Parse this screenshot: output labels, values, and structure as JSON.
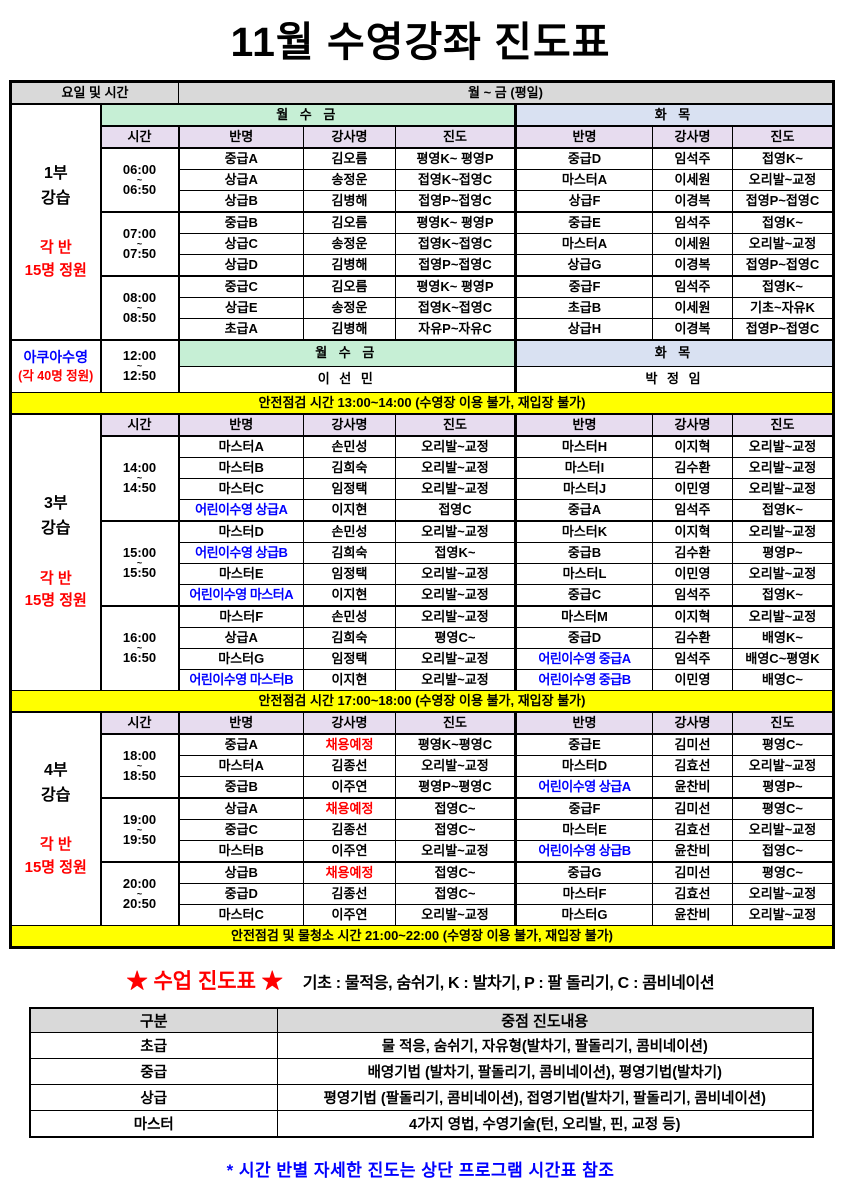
{
  "title": "11월 수영강좌 진도표",
  "colors": {
    "mwf_green": "#c6efd5",
    "tuethu_lavender": "#d9e1f2",
    "column_header_pink": "#e7dcef",
    "gray_header": "#d9d9d9",
    "banner_yellow": "#ffff00",
    "highlight_blue": "#0000ff",
    "highlight_red": "#ff0000"
  },
  "table": {
    "corner_label": "요일 및 시간",
    "weekday_label": "월 ~ 금 (평일)",
    "mwf_label": "월 수 금",
    "tt_label": "화 목",
    "column_headers": [
      "시간",
      "반명",
      "강사명",
      "진도",
      "반명",
      "강사명",
      "진도"
    ],
    "part1": {
      "name_lines": [
        "1부",
        "강습"
      ],
      "capacity_lines": [
        "각 반",
        "15명 정원"
      ],
      "blocks": [
        {
          "time": [
            "06:00",
            "~",
            "06:50"
          ],
          "rows": [
            [
              "중급A",
              "김오름",
              "평영K~ 평영P",
              "중급D",
              "임석주",
              "접영K~"
            ],
            [
              "상급A",
              "송정운",
              "접영K~접영C",
              "마스터A",
              "이세원",
              "오리발~교정"
            ],
            [
              "상급B",
              "김병해",
              "접영P~접영C",
              "상급F",
              "이경복",
              "접영P~접영C"
            ]
          ]
        },
        {
          "time": [
            "07:00",
            "~",
            "07:50"
          ],
          "rows": [
            [
              "중급B",
              "김오름",
              "평영K~ 평영P",
              "중급E",
              "임석주",
              "접영K~"
            ],
            [
              "상급C",
              "송정운",
              "접영K~접영C",
              "마스터A",
              "이세원",
              "오리발~교정"
            ],
            [
              "상급D",
              "김병해",
              "접영P~접영C",
              "상급G",
              "이경복",
              "접영P~접영C"
            ]
          ]
        },
        {
          "time": [
            "08:00",
            "~",
            "08:50"
          ],
          "rows": [
            [
              "중급C",
              "김오름",
              "평영K~ 평영P",
              "중급F",
              "임석주",
              "접영K~"
            ],
            [
              "상급E",
              "송정운",
              "접영K~접영C",
              "초급B",
              "이세원",
              "기초~자유K"
            ],
            [
              "초급A",
              "김병해",
              "자유P~자유C",
              "상급H",
              "이경복",
              "접영P~접영C"
            ]
          ]
        }
      ]
    },
    "aqua": {
      "name": "아쿠아수영",
      "capacity": "(각 40명 정원)",
      "time": [
        "12:00",
        "~",
        "12:50"
      ],
      "mwf_label": "월 수 금",
      "tt_label": "화 목",
      "mwf_instructor": "이 선 민",
      "tt_instructor": "박 정 임"
    },
    "banner1": "안전점검 시간 13:00~14:00 (수영장 이용 불가, 재입장 불가)",
    "part3": {
      "name_lines": [
        "3부",
        "강습"
      ],
      "capacity_lines": [
        "각 반",
        "15명 정원"
      ],
      "blocks": [
        {
          "time": [
            "14:00",
            "~",
            "14:50"
          ],
          "rows": [
            [
              "마스터A",
              "손민성",
              "오리발~교정",
              "마스터H",
              "이지혁",
              "오리발~교정"
            ],
            [
              "마스터B",
              "김희숙",
              "오리발~교정",
              "마스터I",
              "김수환",
              "오리발~교정"
            ],
            [
              "마스터C",
              "임정택",
              "오리발~교정",
              "마스터J",
              "이민영",
              "오리발~교정"
            ],
            [
              {
                "t": "어린이수영 상급A",
                "c": "blue"
              },
              "이지현",
              "접영C",
              "중급A",
              "임석주",
              "접영K~"
            ]
          ]
        },
        {
          "time": [
            "15:00",
            "~",
            "15:50"
          ],
          "rows": [
            [
              "마스터D",
              "손민성",
              "오리발~교정",
              "마스터K",
              "이지혁",
              "오리발~교정"
            ],
            [
              {
                "t": "어린이수영 상급B",
                "c": "blue"
              },
              "김희숙",
              "접영K~",
              "중급B",
              "김수환",
              "평영P~"
            ],
            [
              "마스터E",
              "임정택",
              "오리발~교정",
              "마스터L",
              "이민영",
              "오리발~교정"
            ],
            [
              {
                "t": "어린이수영 마스터A",
                "c": "blue"
              },
              "이지현",
              "오리발~교정",
              "중급C",
              "임석주",
              "접영K~"
            ]
          ]
        },
        {
          "time": [
            "16:00",
            "~",
            "16:50"
          ],
          "rows": [
            [
              "마스터F",
              "손민성",
              "오리발~교정",
              "마스터M",
              "이지혁",
              "오리발~교정"
            ],
            [
              "상급A",
              "김희숙",
              "평영C~",
              "중급D",
              "김수환",
              "배영K~"
            ],
            [
              "마스터G",
              "임정택",
              "오리발~교정",
              {
                "t": "어린이수영 중급A",
                "c": "blue"
              },
              "임석주",
              "배영C~평영K"
            ],
            [
              {
                "t": "어린이수영 마스터B",
                "c": "blue"
              },
              "이지현",
              "오리발~교정",
              {
                "t": "어린이수영 중급B",
                "c": "blue"
              },
              "이민영",
              "배영C~"
            ]
          ]
        }
      ]
    },
    "banner2": "안전점검 시간 17:00~18:00 (수영장 이용 불가, 재입장 불가)",
    "part4": {
      "name_lines": [
        "4부",
        "강습"
      ],
      "capacity_lines": [
        "각 반",
        "15명 정원"
      ],
      "blocks": [
        {
          "time": [
            "18:00",
            "~",
            "18:50"
          ],
          "rows": [
            [
              "중급A",
              {
                "t": "채용예정",
                "c": "red"
              },
              "평영K~평영C",
              "중급E",
              "김미선",
              "평영C~"
            ],
            [
              "마스터A",
              "김종선",
              "오리발~교정",
              "마스터D",
              "김효선",
              "오리발~교정"
            ],
            [
              "중급B",
              "이주연",
              "평영P~평영C",
              {
                "t": "어린이수영 상급A",
                "c": "blue"
              },
              "윤찬비",
              "평영P~"
            ]
          ]
        },
        {
          "time": [
            "19:00",
            "~",
            "19:50"
          ],
          "rows": [
            [
              "상급A",
              {
                "t": "채용예정",
                "c": "red"
              },
              "접영C~",
              "중급F",
              "김미선",
              "평영C~"
            ],
            [
              "중급C",
              "김종선",
              "접영C~",
              "마스터E",
              "김효선",
              "오리발~교정"
            ],
            [
              "마스터B",
              "이주연",
              "오리발~교정",
              {
                "t": "어린이수영 상급B",
                "c": "blue"
              },
              "윤찬비",
              "접영C~"
            ]
          ]
        },
        {
          "time": [
            "20:00",
            "~",
            "20:50"
          ],
          "rows": [
            [
              "상급B",
              {
                "t": "채용예정",
                "c": "red"
              },
              "접영C~",
              "중급G",
              "김미선",
              "평영C~"
            ],
            [
              "중급D",
              "김종선",
              "접영C~",
              "마스터F",
              "김효선",
              "오리발~교정"
            ],
            [
              "마스터C",
              "이주연",
              "오리발~교정",
              "마스터G",
              "윤찬비",
              "오리발~교정"
            ]
          ]
        }
      ]
    },
    "banner3": "안전점검 및 물청소 시간 21:00~22:00 (수영장 이용 불가, 재입장 불가)"
  },
  "legend": {
    "stars_title": "★ 수업 진도표 ★",
    "text": "기초 : 물적응, 숨쉬기, K : 발차기, P : 팔 돌리기, C : 콤비네이션"
  },
  "progress_table": {
    "headers": [
      "구분",
      "중점 진도내용"
    ],
    "rows": [
      [
        "초급",
        "물 적응, 숨쉬기, 자유형(발차기, 팔돌리기, 콤비네이션)"
      ],
      [
        "중급",
        "배영기법 (발차기, 팔돌리기, 콤비네이션), 평영기법(발차기)"
      ],
      [
        "상급",
        "평영기법 (팔돌리기, 콤비네이션), 접영기법(발차기, 팔돌리기, 콤비네이션)"
      ],
      [
        "마스터",
        "4가지 영법, 수영기술(턴, 오리발, 핀, 교정 등)"
      ]
    ]
  },
  "footnote": "* 시간 반별 자세한 진도는 상단 프로그램 시간표 참조"
}
